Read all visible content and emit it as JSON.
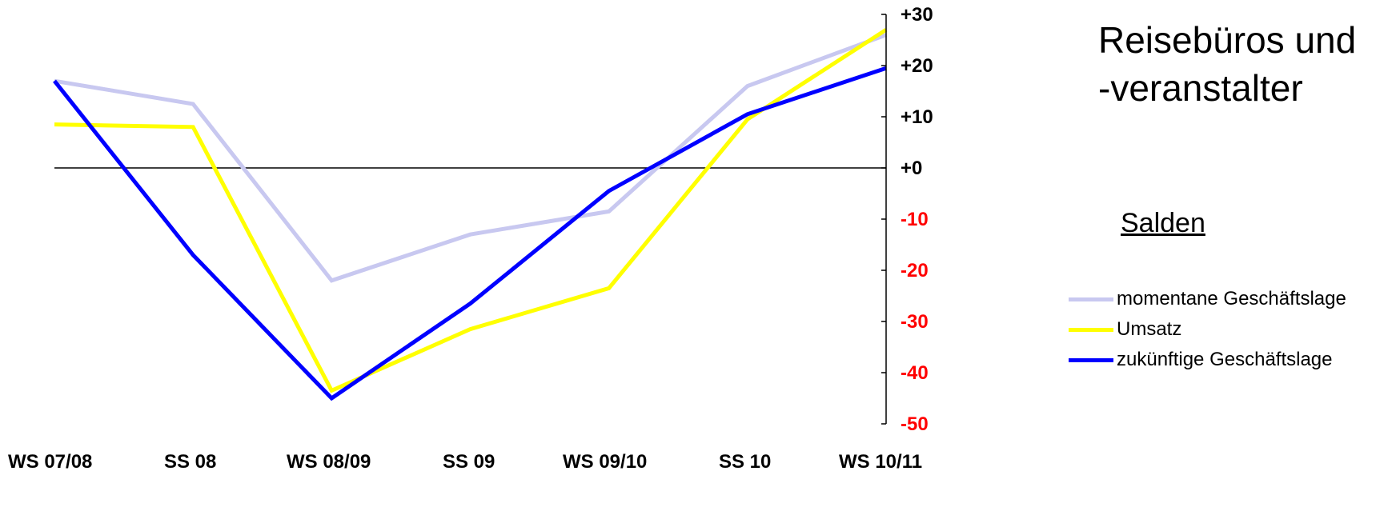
{
  "chart_data": {
    "type": "line",
    "title": "Reisebüros und\n-veranstalter",
    "subtitle": "Salden",
    "categories": [
      "WS 07/08",
      "SS 08",
      "WS 08/09",
      "SS 09",
      "WS 09/10",
      "SS 10",
      "WS 10/11"
    ],
    "y_ticks": [
      "+30",
      "+20",
      "+10",
      "+0",
      "-10",
      "-20",
      "-30",
      "-40",
      "-50"
    ],
    "ylim": [
      -50,
      30
    ],
    "y_axis_position": "right",
    "zero_line": true,
    "legend_placement": "right",
    "positive_tick_color": "#000000",
    "negative_tick_color": "#ff0000",
    "series": [
      {
        "name": "momentane Geschäftslage",
        "color": "#c8c8f0",
        "values": [
          17,
          12.5,
          -22,
          -13,
          -8.5,
          16,
          26
        ]
      },
      {
        "name": "Umsatz",
        "color": "#ffff00",
        "values": [
          8.5,
          8,
          -43.5,
          -31.5,
          -23.5,
          9.5,
          27
        ]
      },
      {
        "name": "zukünftige Geschäftslage",
        "color": "#0000ff",
        "values": [
          17,
          -17,
          -45,
          -26.5,
          -4.5,
          10.5,
          19.5
        ]
      }
    ]
  }
}
